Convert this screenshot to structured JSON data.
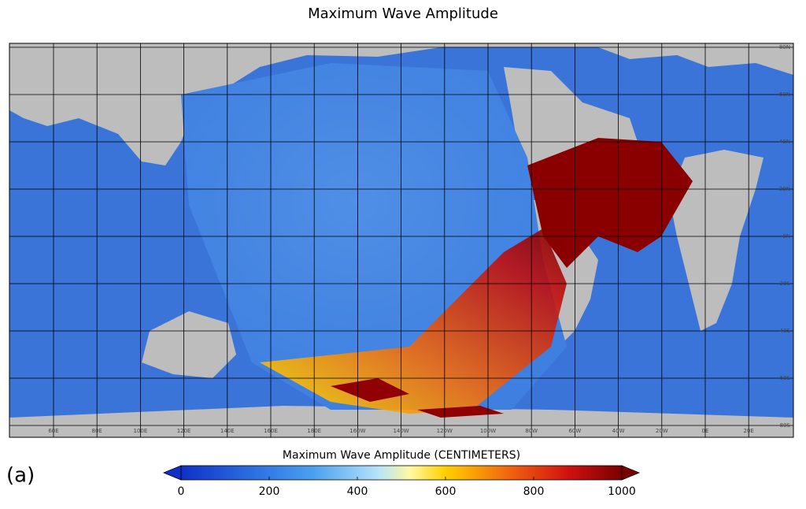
{
  "title": "Maximum Wave Amplitude",
  "panel_label": "(a)",
  "map": {
    "lon_labels": [
      "60E",
      "80E",
      "100E",
      "120E",
      "140E",
      "160E",
      "180E",
      "160W",
      "140W",
      "120W",
      "100W",
      "80W",
      "60W",
      "40W",
      "20W",
      "0E",
      "20E"
    ],
    "lat_labels": [
      "80N",
      "60N",
      "40N",
      "20N",
      "0N",
      "20S",
      "40S",
      "60S",
      "80S"
    ]
  },
  "colorbar": {
    "label": "Maximum Wave Amplitude (CENTIMETERS)",
    "range": [
      0,
      1000
    ],
    "ticks": [
      0,
      200,
      400,
      600,
      800,
      1000
    ]
  }
}
